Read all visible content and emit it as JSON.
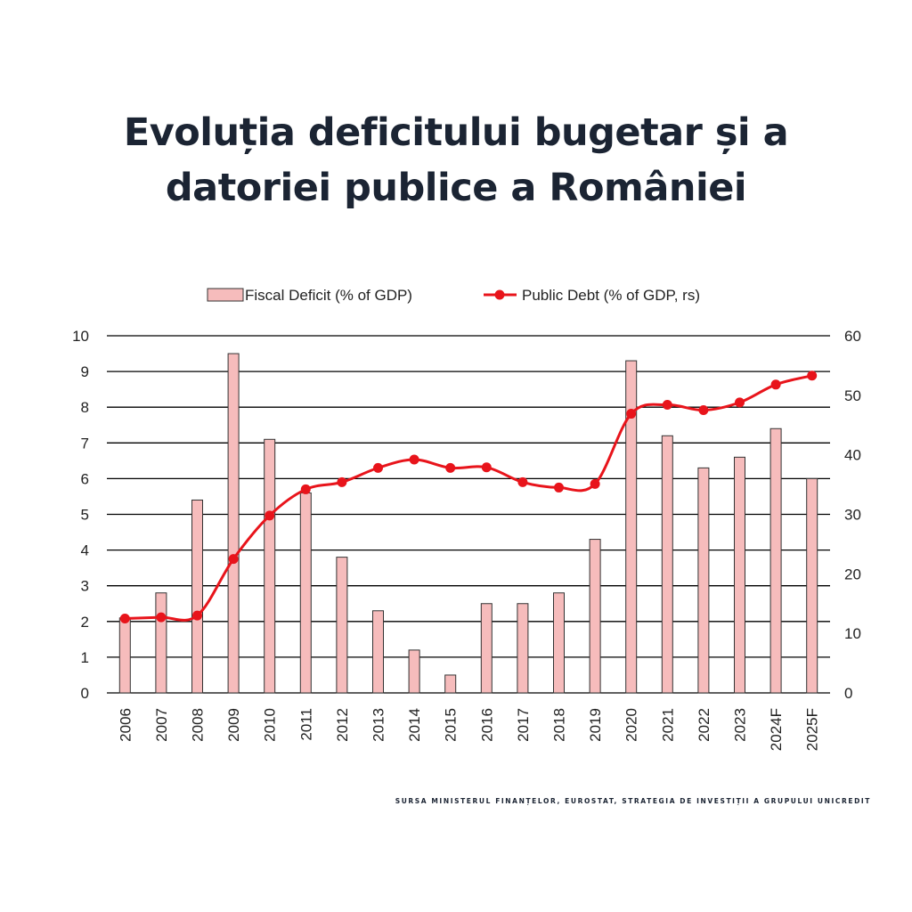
{
  "title_lines": [
    "Evoluția deficitului bugetar și a",
    "datoriei publice a României"
  ],
  "source": "SURSA MINISTERUL FINANȚELOR, EUROSTAT,  STRATEGIA DE INVESTIȚII A GRUPULUI UNICREDIT",
  "colors": {
    "bar_fill": "#f6bcbc",
    "bar_stroke": "#333333",
    "line": "#e8141b",
    "grid": "#000000",
    "text": "#222222",
    "title": "#1b2433"
  },
  "chart_data": {
    "type": "bar",
    "categories": [
      "2006",
      "2007",
      "2008",
      "2009",
      "2010",
      "2011",
      "2012",
      "2013",
      "2014",
      "2015",
      "2016",
      "2017",
      "2018",
      "2019",
      "2020",
      "2021",
      "2022",
      "2023",
      "2024F",
      "2025F"
    ],
    "series": [
      {
        "name": "Fiscal Deficit (% of GDP)",
        "type": "bar",
        "axis": "left",
        "values": [
          2.1,
          2.8,
          5.4,
          9.5,
          7.1,
          5.6,
          3.8,
          2.3,
          1.2,
          0.5,
          2.5,
          2.5,
          2.8,
          4.3,
          9.3,
          7.2,
          6.3,
          6.6,
          7.4,
          6.0
        ]
      },
      {
        "name": "Public Debt (% of GDP, rs)",
        "type": "line",
        "axis": "right",
        "values": [
          12.5,
          12.7,
          13.0,
          22.5,
          29.8,
          34.2,
          35.4,
          37.8,
          39.2,
          37.8,
          37.9,
          35.4,
          34.5,
          35.1,
          46.9,
          48.4,
          47.5,
          48.8,
          51.8,
          53.3
        ]
      }
    ],
    "y_left": {
      "min": 0,
      "max": 10,
      "ticks": [
        0,
        1,
        2,
        3,
        4,
        5,
        6,
        7,
        8,
        9,
        10
      ]
    },
    "y_right": {
      "min": 0,
      "max": 60,
      "ticks": [
        0,
        10,
        20,
        30,
        40,
        50,
        60
      ]
    },
    "grid": true,
    "legend": "top"
  }
}
